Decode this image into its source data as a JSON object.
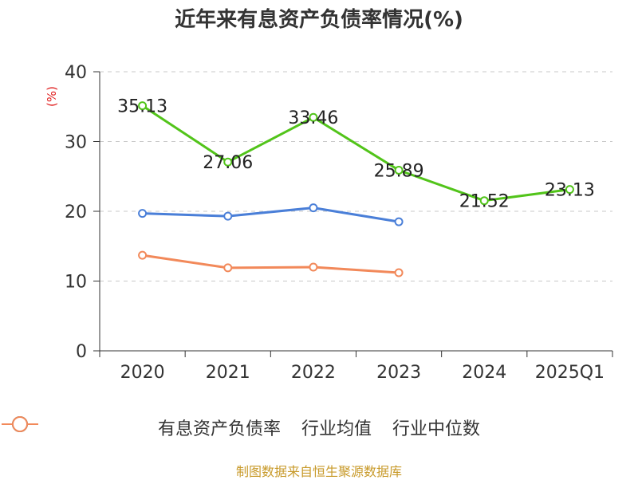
{
  "title": "近年来有息资产负债率情况(%)",
  "unit_label": "(%)",
  "source": "制图数据来自恒生聚源数据库",
  "chart_data": {
    "type": "line",
    "categories": [
      "2020",
      "2021",
      "2022",
      "2023",
      "2024",
      "2025Q1"
    ],
    "ylim": [
      0,
      40
    ],
    "yticks": [
      0,
      10,
      20,
      30,
      40
    ],
    "grid": true,
    "legend_position": "bottom",
    "series": [
      {
        "name": "有息资产负债率",
        "color": "#52c41a",
        "values": [
          35.13,
          27.06,
          33.46,
          25.89,
          21.52,
          23.13
        ],
        "labels": [
          "35.13",
          "27.06",
          "33.46",
          "25.89",
          "21.52",
          "23.13"
        ]
      },
      {
        "name": "行业均值",
        "color": "#4a7fd8",
        "values": [
          19.7,
          19.3,
          20.5,
          18.5,
          null,
          null
        ]
      },
      {
        "name": "行业中位数",
        "color": "#f2895a",
        "values": [
          13.7,
          11.9,
          12.0,
          11.2,
          null,
          null
        ]
      }
    ]
  }
}
